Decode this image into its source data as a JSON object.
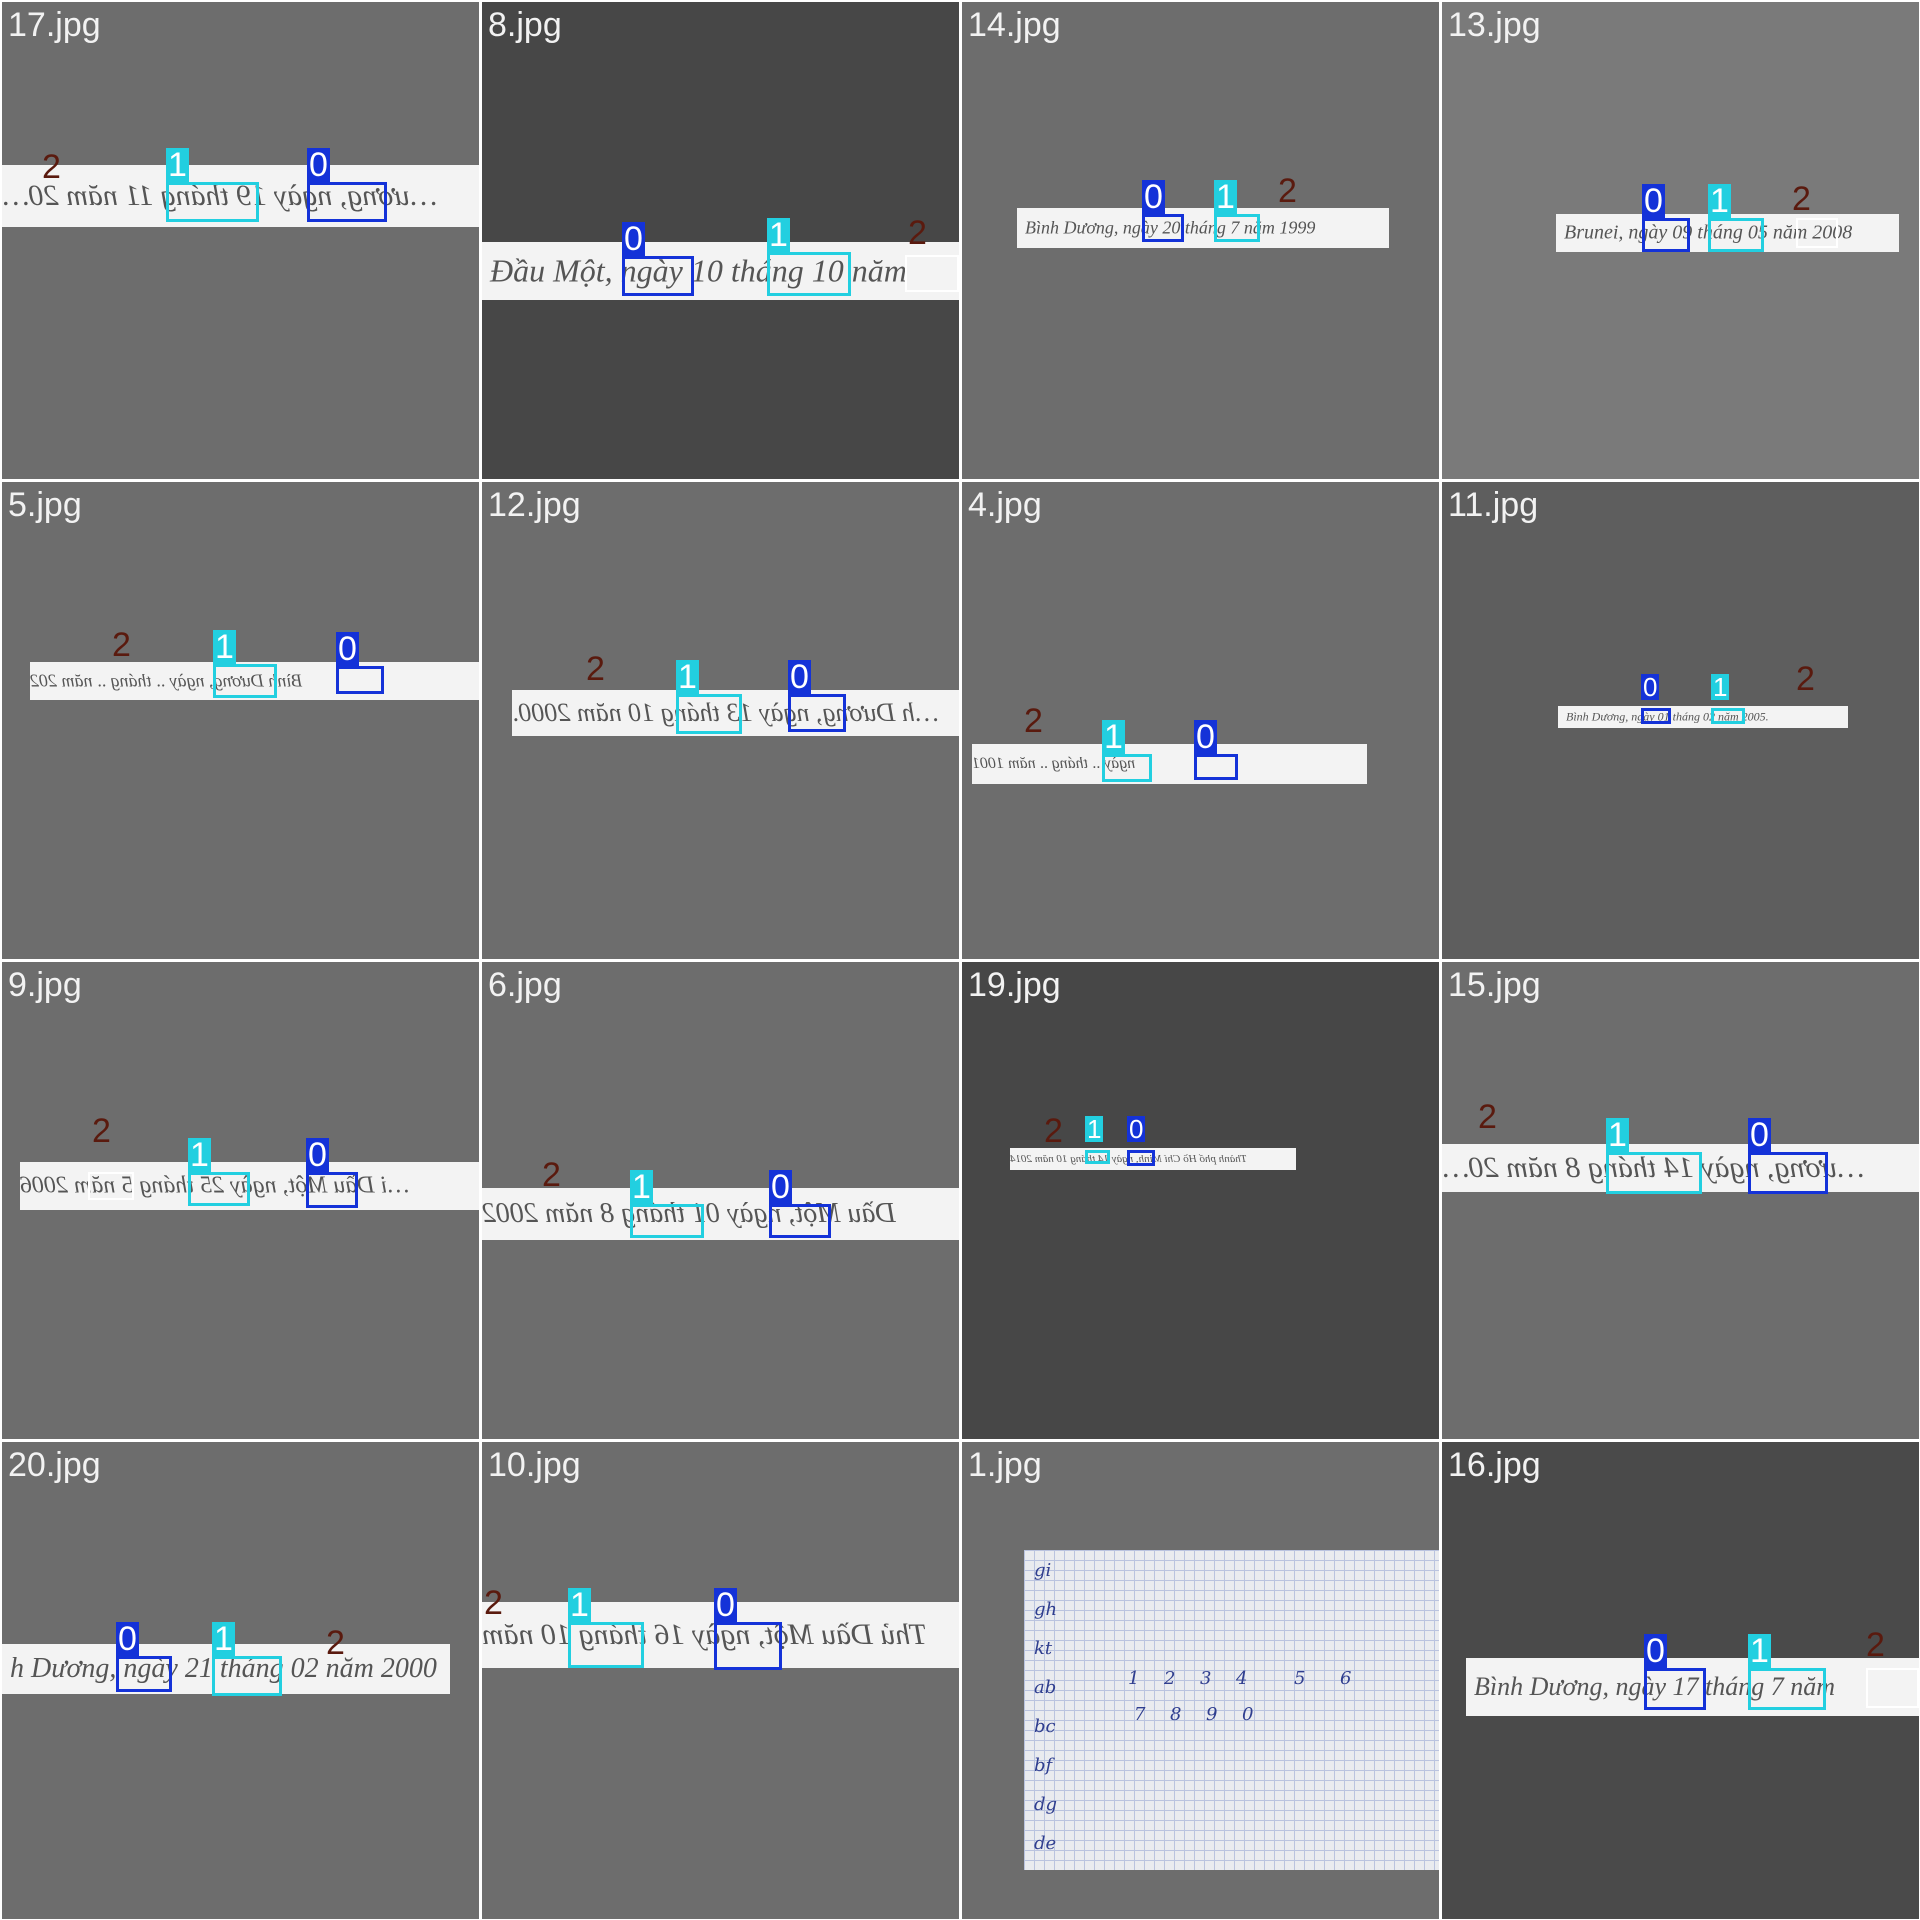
{
  "grid": {
    "background": "#ffffff",
    "tiles": [
      {
        "label": "17.jpg",
        "bg": "#6d6d6d",
        "text": "…ương, ngày 19 tháng 11 năm 20…",
        "mirror": true,
        "paper": false
      },
      {
        "label": "8.jpg",
        "bg": "#474747",
        "text": "Đầu Một, ngày 10 tháng 10 năm",
        "mirror": false,
        "paper": false
      },
      {
        "label": "14.jpg",
        "bg": "#6d6d6d",
        "text": "Bình Dương, ngày 20 tháng 7 năm 1999",
        "mirror": false,
        "paper": false
      },
      {
        "label": "13.jpg",
        "bg": "#7a7a7a",
        "text": "Brunei, ngày 09 tháng 05 năm 2008",
        "mirror": false,
        "paper": false
      },
      {
        "label": "5.jpg",
        "bg": "#6d6d6d",
        "text": "Bình Dương, ngày .. tháng .. năm 202",
        "mirror": true,
        "paper": false
      },
      {
        "label": "12.jpg",
        "bg": "#6d6d6d",
        "text": "…h Dương, ngày 13 tháng 10 năm 2000.",
        "mirror": true,
        "paper": false
      },
      {
        "label": "4.jpg",
        "bg": "#6d6d6d",
        "text": "ngày .. tháng .. năm 1001",
        "mirror": true,
        "paper": false
      },
      {
        "label": "11.jpg",
        "bg": "#5e5e5e",
        "text": "Bình Dương, ngày 01 tháng 02 năm 2005.",
        "mirror": false,
        "paper": false
      },
      {
        "label": "9.jpg",
        "bg": "#6d6d6d",
        "text": "…i Dầu Một, ngày 25 tháng 5 năm 2006",
        "mirror": true,
        "paper": false
      },
      {
        "label": "6.jpg",
        "bg": "#6d6d6d",
        "text": "Dầu Một, ngày 01 tháng 8 năm 2002",
        "mirror": true,
        "paper": false
      },
      {
        "label": "19.jpg",
        "bg": "#474747",
        "text": "Thành phố Hồ Chí Minh, ngày 14 tháng 10 năm 2014",
        "mirror": true,
        "paper": false
      },
      {
        "label": "15.jpg",
        "bg": "#6d6d6d",
        "text": "…ương, ngày 14 tháng 8 năm 20…",
        "mirror": true,
        "paper": false
      },
      {
        "label": "20.jpg",
        "bg": "#6d6d6d",
        "text": "h Dương, ngày 21 tháng 02 năm 2000",
        "mirror": false,
        "paper": false
      },
      {
        "label": "10.jpg",
        "bg": "#6d6d6d",
        "text": "Thủ Dầu Một, ngày 16 tháng 10 năm",
        "mirror": true,
        "paper": false
      },
      {
        "label": "1.jpg",
        "bg": "#6d6d6d",
        "text": "",
        "mirror": false,
        "paper": true,
        "paper_rows": [
          "gi",
          "gh",
          "kt",
          "ab",
          "bc",
          "bf",
          "dg",
          "de"
        ],
        "paper_digits_row1": [
          "1",
          "2",
          "3",
          "4",
          "5",
          "6"
        ],
        "paper_digits_row2": [
          "7",
          "8",
          "9",
          "0"
        ]
      },
      {
        "label": "16.jpg",
        "bg": "#4a4a4a",
        "text": "Bình Dương, ngày 17 tháng 7 năm",
        "mirror": false,
        "paper": false
      }
    ]
  },
  "classes": [
    {
      "id": "0",
      "color": "#1432d8"
    },
    {
      "id": "1",
      "color": "#22cfe0"
    },
    {
      "id": "2",
      "color": "#ffffff",
      "tag_color": "#5a1a0e"
    }
  ]
}
